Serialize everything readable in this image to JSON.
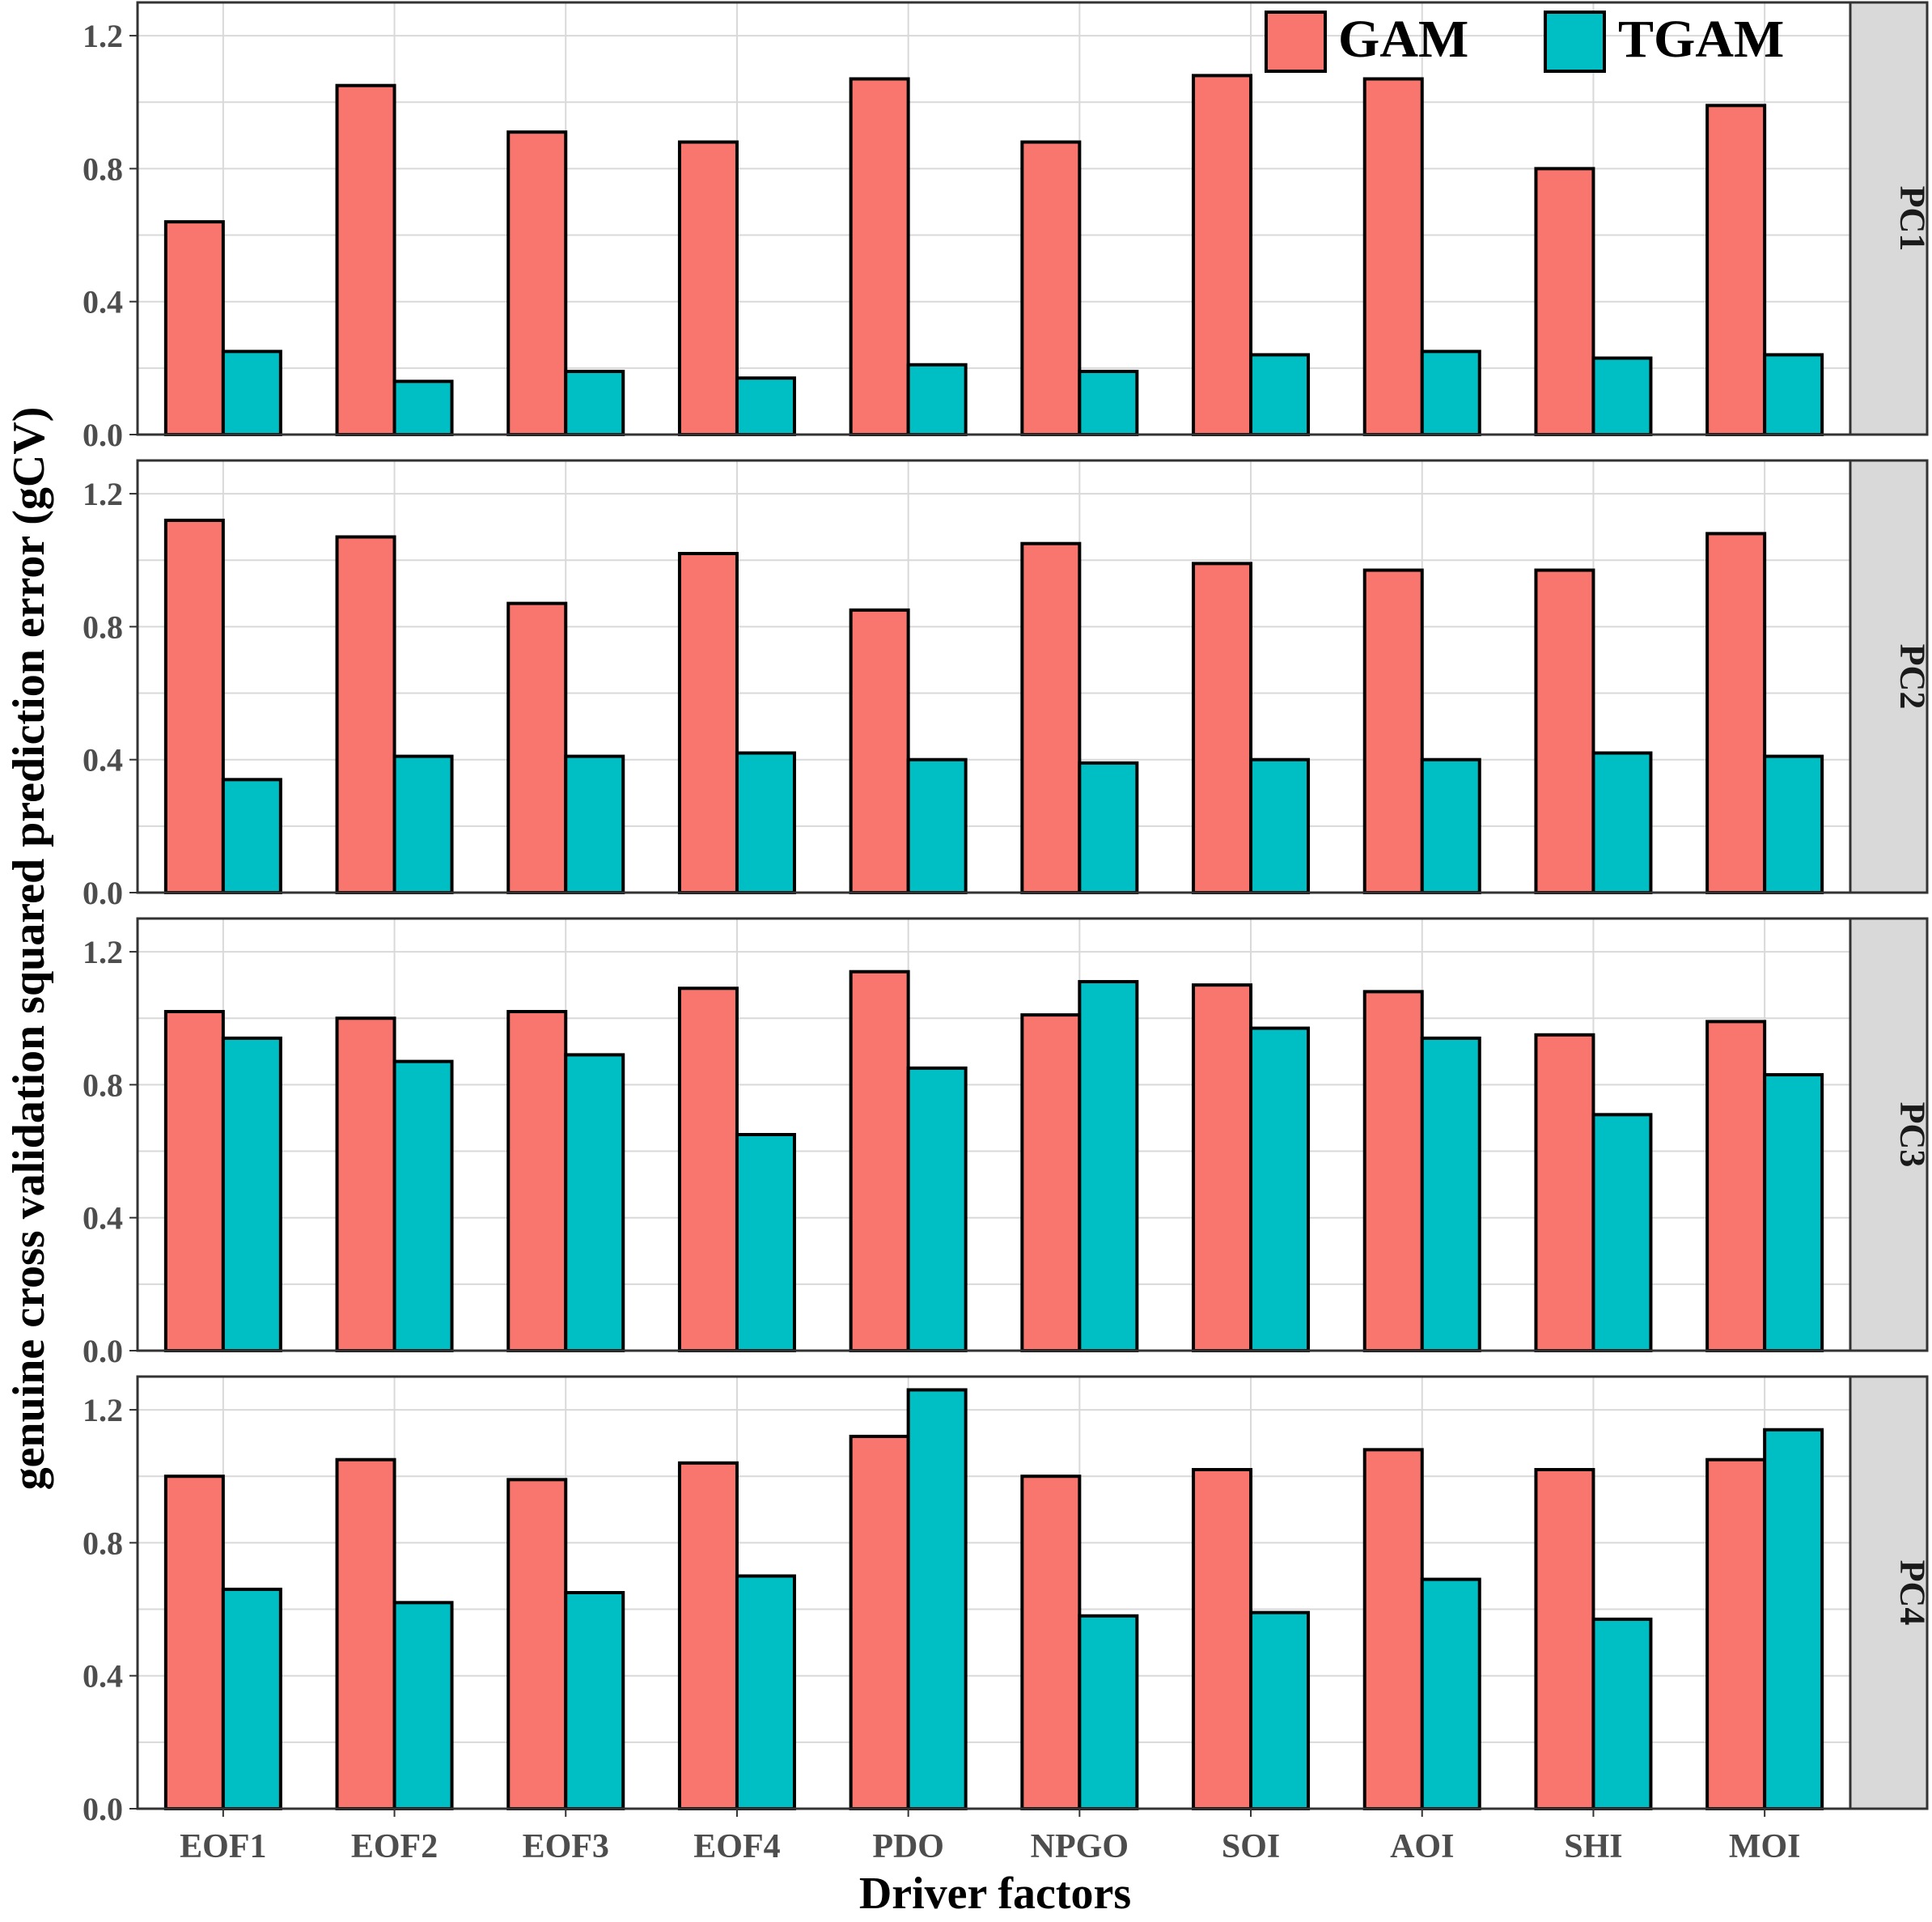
{
  "colors": {
    "GAM": "#F8766D",
    "TGAM": "#00BFC4",
    "grid": "#D9D9D9",
    "strip": "#D9D9D9"
  },
  "legend": {
    "items": [
      "GAM",
      "TGAM"
    ],
    "position": "top-right"
  },
  "chart_data": {
    "type": "bar",
    "xlabel": "Driver factors",
    "ylabel": "genuine cross validation squared prediction error (gCV)",
    "categories": [
      "EOF1",
      "EOF2",
      "EOF3",
      "EOF4",
      "PDO",
      "NPGO",
      "SOI",
      "AOI",
      "SHI",
      "MOI"
    ],
    "ylim": [
      0,
      1.3
    ],
    "yticks": [
      "0.0",
      "0.4",
      "0.8",
      "1.2"
    ],
    "grid": true,
    "facets": [
      {
        "label": "PC1",
        "series": [
          {
            "name": "GAM",
            "values": [
              0.64,
              1.05,
              0.91,
              0.88,
              1.07,
              0.88,
              1.08,
              1.07,
              0.8,
              0.99
            ]
          },
          {
            "name": "TGAM",
            "values": [
              0.25,
              0.16,
              0.19,
              0.17,
              0.21,
              0.19,
              0.24,
              0.25,
              0.23,
              0.24
            ]
          }
        ]
      },
      {
        "label": "PC2",
        "series": [
          {
            "name": "GAM",
            "values": [
              1.12,
              1.07,
              0.87,
              1.02,
              0.85,
              1.05,
              0.99,
              0.97,
              0.97,
              1.08
            ]
          },
          {
            "name": "TGAM",
            "values": [
              0.34,
              0.41,
              0.41,
              0.42,
              0.4,
              0.39,
              0.4,
              0.4,
              0.42,
              0.41
            ]
          }
        ]
      },
      {
        "label": "PC3",
        "series": [
          {
            "name": "GAM",
            "values": [
              1.02,
              1.0,
              1.02,
              1.09,
              1.14,
              1.01,
              1.1,
              1.08,
              0.95,
              0.99
            ]
          },
          {
            "name": "TGAM",
            "values": [
              0.94,
              0.87,
              0.89,
              0.65,
              0.85,
              1.11,
              0.97,
              0.94,
              0.71,
              0.83
            ]
          }
        ]
      },
      {
        "label": "PC4",
        "series": [
          {
            "name": "GAM",
            "values": [
              1.0,
              1.05,
              0.99,
              1.04,
              1.12,
              1.0,
              1.02,
              1.08,
              1.02,
              1.05
            ]
          },
          {
            "name": "TGAM",
            "values": [
              0.66,
              0.62,
              0.65,
              0.7,
              1.26,
              0.58,
              0.59,
              0.69,
              0.57,
              1.14
            ]
          }
        ]
      }
    ]
  }
}
